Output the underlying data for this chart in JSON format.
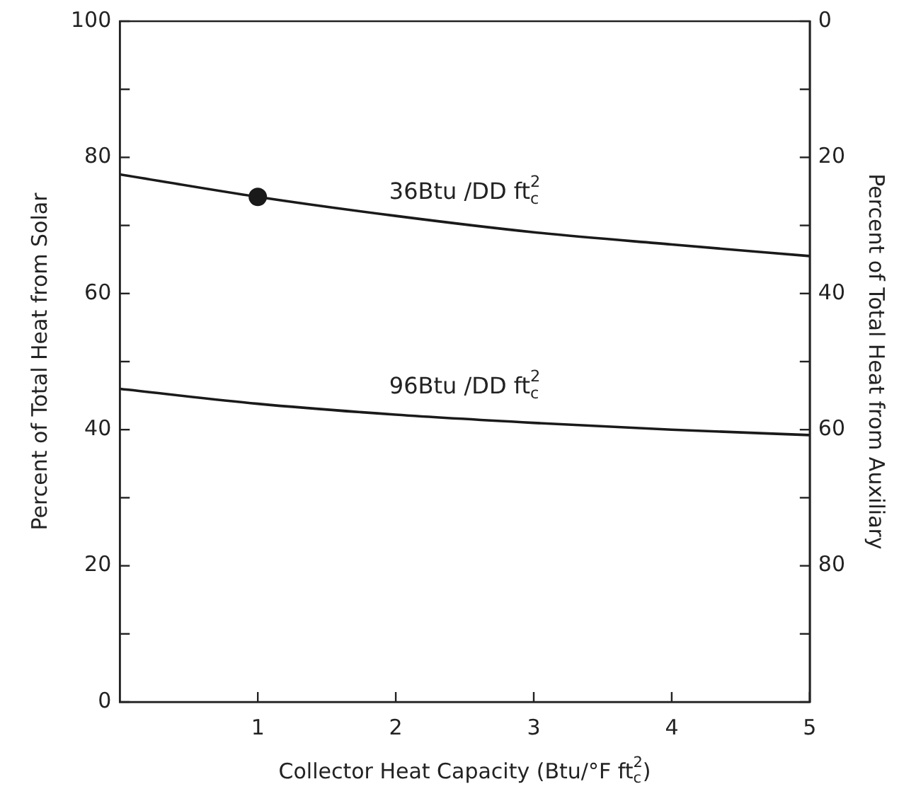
{
  "chart_data": {
    "type": "line",
    "xlabel": "Collector Heat Capacity (Btu/°F ft$^{2}$$_{c}$)",
    "ylabel": "Percent of Total Heat from Solar",
    "y2label": "Percent of Total Heat from Auxiliary",
    "x": [
      0,
      1,
      2,
      3,
      4,
      5
    ],
    "series": [
      {
        "color": "#1a1a1a",
        "values": [
          77.5,
          74.2,
          71.4,
          69.0,
          67.2,
          65.5
        ]
      },
      {
        "color": "#1a1a1a",
        "values": [
          46,
          43.8,
          42.2,
          41,
          40,
          39.2
        ]
      },
      {
        "type": "scatter",
        "x": [
          1
        ],
        "color": "#1a1a1a",
        "marker": "circle",
        "values": [
          74.2
        ]
      }
    ],
    "xlim": [
      0,
      5
    ],
    "xticks": [
      1,
      2,
      3,
      4,
      5
    ],
    "ylim": [
      0,
      100
    ],
    "yticks": [
      0,
      {
        "value": 10,
        "label": null
      },
      20,
      {
        "value": 30,
        "label": null
      },
      40,
      {
        "value": 50,
        "label": null
      },
      60,
      {
        "value": 70,
        "label": null
      },
      80,
      {
        "value": 90,
        "label": null
      },
      100
    ],
    "y2lim": [
      100,
      0
    ],
    "y2ticks": [
      0,
      {
        "value": 10,
        "label": null
      },
      20,
      {
        "value": 30,
        "label": null
      },
      40,
      {
        "value": 50,
        "label": null
      },
      60,
      {
        "value": 70,
        "label": null
      },
      80,
      {
        "value": 90,
        "label": null
      },
      {
        "value": 100,
        "label": null
      }
    ],
    "annotations": [
      "36Btu /DD ft$^{2}$$_{c}$",
      "96Btu /DD ft$^{2}$$_{c}$"
    ],
    "grid": false,
    "legend": false,
    "marker": "none",
    "line_style": "solid"
  }
}
